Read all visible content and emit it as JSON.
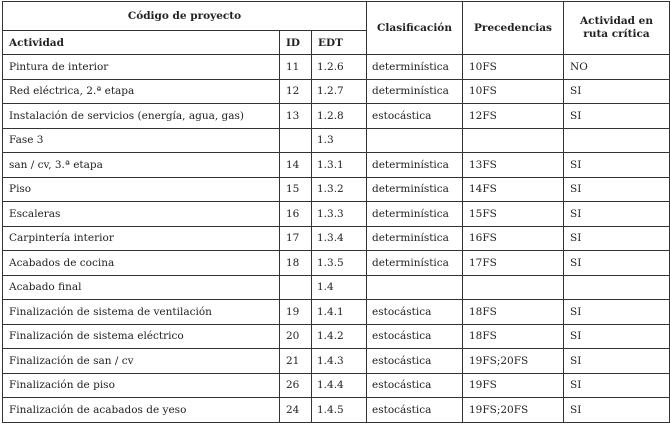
{
  "header": {
    "group": "Código de proyecto",
    "actividad": "Actividad",
    "id": "ID",
    "edt": "EDT",
    "clasificacion": "Clasificación",
    "precedencias": "Precedencias",
    "ruta_critica": "Actividad en ruta crítica"
  },
  "rows": [
    {
      "actividad": "Pintura de interior",
      "id": "11",
      "edt": "1.2.6",
      "clasificacion": "determinística",
      "precedencias": "10FS",
      "ruta": "NO"
    },
    {
      "actividad": "Red eléctrica, 2.ª etapa",
      "id": "12",
      "edt": "1.2.7",
      "clasificacion": "determinística",
      "precedencias": "10FS",
      "ruta": "SI"
    },
    {
      "actividad": "Instalación de servicios (energía, agua, gas)",
      "id": "13",
      "edt": "1.2.8",
      "clasificacion": "estocástica",
      "precedencias": "12FS",
      "ruta": "SI"
    },
    {
      "actividad": "Fase 3",
      "id": "",
      "edt": "1.3",
      "clasificacion": "",
      "precedencias": "",
      "ruta": ""
    },
    {
      "actividad": "san / cv, 3.ª etapa",
      "id": "14",
      "edt": "1.3.1",
      "clasificacion": "determinística",
      "precedencias": "13FS",
      "ruta": "SI"
    },
    {
      "actividad": "Piso",
      "id": "15",
      "edt": "1.3.2",
      "clasificacion": "determinística",
      "precedencias": "14FS",
      "ruta": "SI"
    },
    {
      "actividad": "Escaleras",
      "id": "16",
      "edt": "1.3.3",
      "clasificacion": "determinística",
      "precedencias": "15FS",
      "ruta": "SI"
    },
    {
      "actividad": "Carpintería interior",
      "id": "17",
      "edt": "1.3.4",
      "clasificacion": "determinística",
      "precedencias": "16FS",
      "ruta": "SI"
    },
    {
      "actividad": "Acabados de cocina",
      "id": "18",
      "edt": "1.3.5",
      "clasificacion": "determinística",
      "precedencias": "17FS",
      "ruta": "SI"
    },
    {
      "actividad": "Acabado final",
      "id": "",
      "edt": "1.4",
      "clasificacion": "",
      "precedencias": "",
      "ruta": ""
    },
    {
      "actividad": "Finalización de sistema de ventilación",
      "id": "19",
      "edt": "1.4.1",
      "clasificacion": "estocástica",
      "precedencias": "18FS",
      "ruta": "SI"
    },
    {
      "actividad": "Finalización de sistema eléctrico",
      "id": "20",
      "edt": "1.4.2",
      "clasificacion": "estocástica",
      "precedencias": "18FS",
      "ruta": "SI"
    },
    {
      "actividad": "Finalización de san / cv",
      "id": "21",
      "edt": "1.4.3",
      "clasificacion": "estocástica",
      "precedencias": "19FS;20FS",
      "ruta": "SI"
    },
    {
      "actividad": "Finalización de piso",
      "id": "26",
      "edt": "1.4.4",
      "clasificacion": "estocástica",
      "precedencias": "19FS",
      "ruta": "SI"
    },
    {
      "actividad": "Finalización de acabados de yeso",
      "id": "24",
      "edt": "1.4.5",
      "clasificacion": "estocástica",
      "precedencias": "19FS;20FS",
      "ruta": "SI"
    }
  ]
}
